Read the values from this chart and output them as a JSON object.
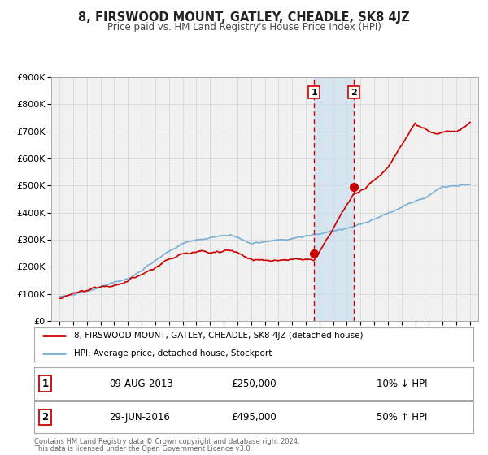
{
  "title": "8, FIRSWOOD MOUNT, GATLEY, CHEADLE, SK8 4JZ",
  "subtitle": "Price paid vs. HM Land Registry's House Price Index (HPI)",
  "ylim": [
    0,
    900000
  ],
  "yticks": [
    0,
    100000,
    200000,
    300000,
    400000,
    500000,
    600000,
    700000,
    800000,
    900000
  ],
  "ytick_labels": [
    "£0",
    "£100K",
    "£200K",
    "£300K",
    "£400K",
    "£500K",
    "£600K",
    "£700K",
    "£800K",
    "£900K"
  ],
  "hpi_color": "#7bafd4",
  "price_color": "#cc0000",
  "marker1_date": 2013.6,
  "marker2_date": 2016.5,
  "marker1_price": 250000,
  "marker2_price": 495000,
  "sale1_label": "1",
  "sale2_label": "2",
  "sale1_text": "09-AUG-2013",
  "sale1_price": "£250,000",
  "sale1_pct": "10% ↓ HPI",
  "sale2_text": "29-JUN-2016",
  "sale2_price": "£495,000",
  "sale2_pct": "50% ↑ HPI",
  "legend_line1": "8, FIRSWOOD MOUNT, GATLEY, CHEADLE, SK8 4JZ (detached house)",
  "legend_line2": "HPI: Average price, detached house, Stockport",
  "footer1": "Contains HM Land Registry data © Crown copyright and database right 2024.",
  "footer2": "This data is licensed under the Open Government Licence v3.0.",
  "bg_color": "#f0f0f0",
  "grid_color": "#d8d8d8",
  "shade_color": "#ccdff0"
}
